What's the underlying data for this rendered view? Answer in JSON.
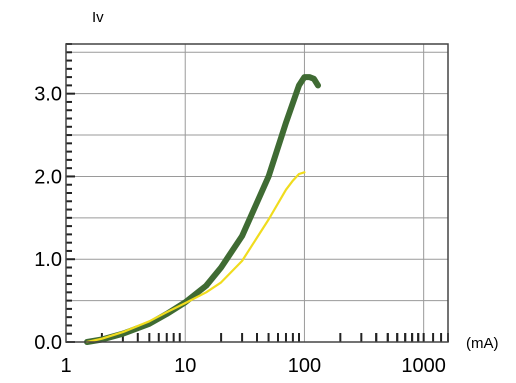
{
  "chart_data": {
    "type": "line",
    "title": "",
    "xlabel": "(mA)",
    "ylabel": "Iv",
    "x_scale": "log",
    "xlim": [
      1,
      1600
    ],
    "ylim": [
      0,
      3.6
    ],
    "x_ticks": [
      1,
      10,
      100,
      1000
    ],
    "x_tick_labels": [
      "1",
      "10",
      "100",
      "1000"
    ],
    "y_ticks": [
      0,
      1,
      2,
      3
    ],
    "y_tick_labels": [
      "0.0",
      "1.0",
      "2.0",
      "3.0"
    ],
    "grid": true,
    "legend": "none",
    "series": [
      {
        "color": "#3f6b33",
        "x": [
          1.5,
          2,
          3,
          5,
          7,
          10,
          15,
          20,
          30,
          50,
          70,
          90,
          100,
          110,
          120,
          130
        ],
        "y": [
          0.0,
          0.03,
          0.1,
          0.22,
          0.34,
          0.48,
          0.68,
          0.9,
          1.28,
          2.0,
          2.65,
          3.1,
          3.2,
          3.2,
          3.18,
          3.1
        ]
      },
      {
        "color": "#f0dc1e",
        "x": [
          1.5,
          2,
          3,
          5,
          7,
          10,
          15,
          20,
          30,
          50,
          70,
          80,
          90,
          100
        ],
        "y": [
          0.0,
          0.04,
          0.12,
          0.25,
          0.36,
          0.47,
          0.6,
          0.72,
          0.98,
          1.48,
          1.84,
          1.95,
          2.03,
          2.05
        ]
      }
    ]
  }
}
